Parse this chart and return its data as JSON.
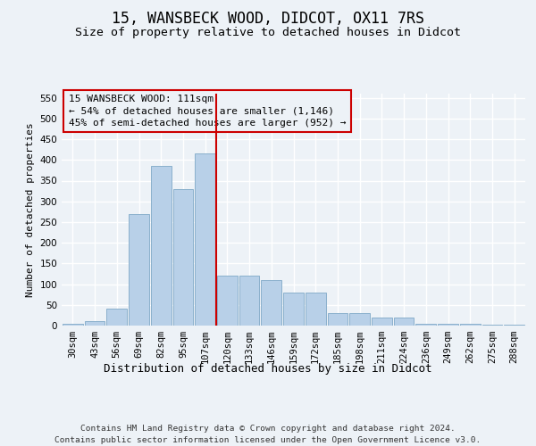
{
  "title": "15, WANSBECK WOOD, DIDCOT, OX11 7RS",
  "subtitle": "Size of property relative to detached houses in Didcot",
  "xlabel": "Distribution of detached houses by size in Didcot",
  "ylabel": "Number of detached properties",
  "categories": [
    "30sqm",
    "43sqm",
    "56sqm",
    "69sqm",
    "82sqm",
    "95sqm",
    "107sqm",
    "120sqm",
    "133sqm",
    "146sqm",
    "159sqm",
    "172sqm",
    "185sqm",
    "198sqm",
    "211sqm",
    "224sqm",
    "236sqm",
    "249sqm",
    "262sqm",
    "275sqm",
    "288sqm"
  ],
  "values": [
    5,
    10,
    40,
    270,
    385,
    330,
    415,
    120,
    120,
    110,
    80,
    80,
    30,
    30,
    20,
    20,
    5,
    5,
    5,
    2,
    2
  ],
  "bar_color": "#b8d0e8",
  "bar_edge_color": "#8ab0cc",
  "vline_x": 6.5,
  "vline_color": "#cc0000",
  "annotation_text": "15 WANSBECK WOOD: 111sqm\n← 54% of detached houses are smaller (1,146)\n45% of semi-detached houses are larger (952) →",
  "annotation_box_edgecolor": "#cc0000",
  "ylim": [
    0,
    560
  ],
  "yticks": [
    0,
    50,
    100,
    150,
    200,
    250,
    300,
    350,
    400,
    450,
    500,
    550
  ],
  "background_color": "#edf2f7",
  "grid_color": "#ffffff",
  "title_fontsize": 12,
  "subtitle_fontsize": 9.5,
  "xlabel_fontsize": 9,
  "ylabel_fontsize": 8,
  "tick_fontsize": 7.5,
  "annotation_fontsize": 8,
  "footer_fontsize": 6.8,
  "footer_line1": "Contains HM Land Registry data © Crown copyright and database right 2024.",
  "footer_line2": "Contains public sector information licensed under the Open Government Licence v3.0."
}
